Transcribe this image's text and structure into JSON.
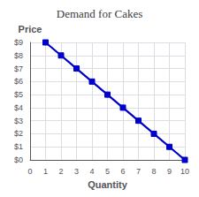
{
  "chart_data": {
    "type": "line",
    "title": "Demand for Cakes",
    "xlabel": "Quantity",
    "ylabel": "Price",
    "x": [
      1,
      2,
      3,
      4,
      5,
      6,
      7,
      8,
      9,
      10
    ],
    "values": [
      9,
      8,
      7,
      6,
      5,
      4,
      3,
      2,
      1,
      0
    ],
    "color": "#0000cc",
    "marker": "square",
    "xlim": [
      0,
      10
    ],
    "ylim": [
      0,
      9
    ],
    "xticks": [
      0,
      1,
      2,
      3,
      4,
      5,
      6,
      7,
      8,
      9,
      10
    ],
    "yticks": [
      {
        "value": 0,
        "label": "$0"
      },
      {
        "value": 1,
        "label": "$1"
      },
      {
        "value": 2,
        "label": "$2"
      },
      {
        "value": 3,
        "label": "$3"
      },
      {
        "value": 4,
        "label": "$4"
      },
      {
        "value": 5,
        "label": "$5"
      },
      {
        "value": 6,
        "label": "$6"
      },
      {
        "value": 7,
        "label": "$7"
      },
      {
        "value": 8,
        "label": "$8"
      },
      {
        "value": 9,
        "label": "$9"
      }
    ],
    "grid": true
  }
}
